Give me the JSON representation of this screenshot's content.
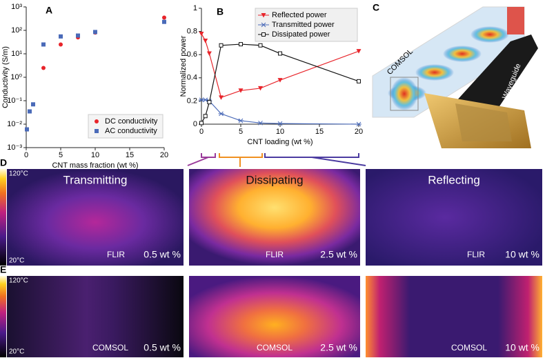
{
  "chart_data": [
    {
      "type": "scatter",
      "panel": "A",
      "xlabel": "CNT mass fraction (wt %)",
      "ylabel": "Conductivity (S/m)",
      "xlim": [
        0,
        20
      ],
      "xticks": [
        0,
        5,
        10,
        15,
        20
      ],
      "log_y": true,
      "ylim": [
        0.001,
        1000
      ],
      "yticks": [
        {
          "value": 0.001,
          "label": "10⁻³"
        },
        {
          "value": 0.01,
          "label": "10⁻²"
        },
        {
          "value": 0.1,
          "label": "10⁻¹"
        },
        {
          "value": 1,
          "label": "10⁰"
        },
        {
          "value": 10,
          "label": "10¹"
        },
        {
          "value": 100,
          "label": "10²"
        },
        {
          "value": 1000,
          "label": "10³"
        }
      ],
      "legend": "lower right",
      "series": [
        {
          "name": "DC conductivity",
          "color": "#e8252b",
          "marker": "circle",
          "x": [
            2.5,
            5,
            7.5,
            10,
            20
          ],
          "values": [
            2.5,
            25,
            50,
            80,
            350
          ]
        },
        {
          "name": "AC conductivity",
          "color": "#4a6ab8",
          "marker": "square",
          "x": [
            0.1,
            0.5,
            1,
            2.5,
            5,
            7.5,
            10,
            20
          ],
          "values": [
            0.006,
            0.035,
            0.07,
            25,
            55,
            60,
            85,
            230
          ]
        }
      ]
    },
    {
      "type": "line",
      "panel": "B",
      "xlabel": "CNT loading (wt %)",
      "ylabel": "Normalized power",
      "xlim": [
        0,
        20
      ],
      "xticks": [
        0,
        5,
        10,
        15,
        20
      ],
      "ylim": [
        0,
        1
      ],
      "yticks": [
        0,
        0.2,
        0.4,
        0.6,
        0.8,
        1
      ],
      "legend": "upper right",
      "x": [
        0,
        0.5,
        1,
        2.5,
        5,
        7.5,
        10,
        20
      ],
      "series": [
        {
          "name": "Reflected power",
          "color": "#e8252b",
          "marker": "triangle",
          "values": [
            0.78,
            0.72,
            0.61,
            0.23,
            0.29,
            0.31,
            0.38,
            0.63
          ]
        },
        {
          "name": "Transmitted power",
          "color": "#4a6ab8",
          "marker": "star",
          "values": [
            0.21,
            0.21,
            0.2,
            0.09,
            0.03,
            0.01,
            0.005,
            0.0
          ]
        },
        {
          "name": "Dissipated power",
          "color": "#111111",
          "marker": "square-open",
          "values": [
            0.01,
            0.07,
            0.19,
            0.68,
            0.69,
            0.68,
            0.61,
            0.37
          ]
        }
      ]
    }
  ],
  "panels": {
    "C": {
      "label": "C",
      "model": "COMSOL",
      "device": "Waveguide"
    },
    "D": {
      "label": "D",
      "scale_max": "120°C",
      "scale_min": "20°C",
      "images": [
        {
          "title": "Transmitting",
          "source": "FLIR",
          "loading": "0.5 wt %"
        },
        {
          "title": "Dissipating",
          "source": "FLIR",
          "loading": "2.5 wt %"
        },
        {
          "title": "Reflecting",
          "source": "FLIR",
          "loading": "10 wt %"
        }
      ]
    },
    "E": {
      "label": "E",
      "scale_max": "120°C",
      "scale_min": "20°C",
      "images": [
        {
          "source": "COMSOL",
          "loading": "0.5 wt %"
        },
        {
          "source": "COMSOL",
          "loading": "2.5 wt %"
        },
        {
          "source": "COMSOL",
          "loading": "10 wt %"
        }
      ]
    }
  }
}
